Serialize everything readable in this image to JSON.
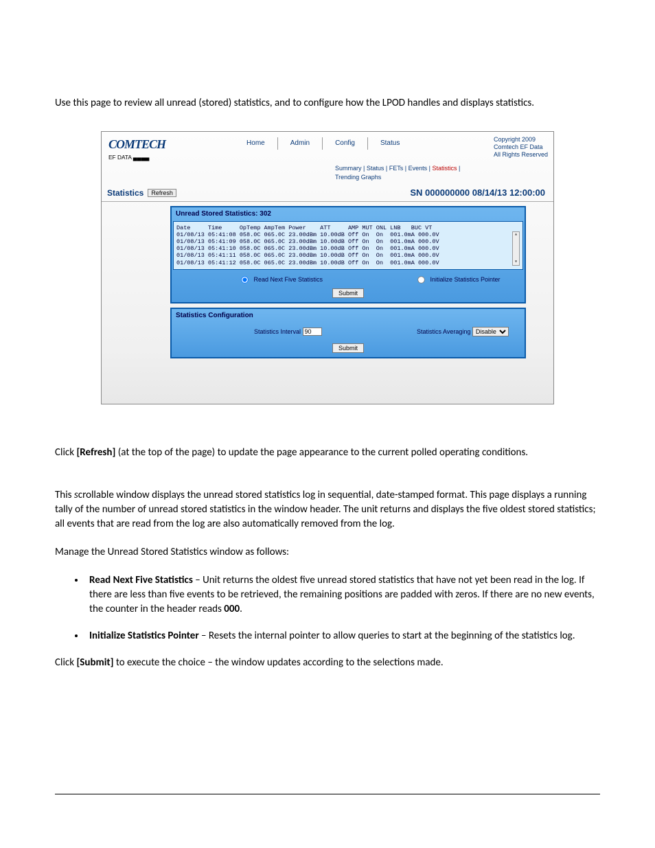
{
  "intro": "Use this page to review all unread (stored) statistics, and to configure how the LPOD handles and displays statistics.",
  "screenshot": {
    "logo": "COMTECH",
    "logo_sub": "EF DATA ▄▄▄▄",
    "nav": {
      "home": "Home",
      "admin": "Admin",
      "config": "Config",
      "status": "Status"
    },
    "copyright": {
      "l1": "Copyright 2009",
      "l2": "Comtech EF Data",
      "l3": "All Rights Reserved"
    },
    "subnav": {
      "summary": "Summary",
      "status": "Status",
      "fets": "FETs",
      "events": "Events",
      "statistics": "Statistics",
      "trending": "Trending Graphs"
    },
    "stats_label": "Statistics",
    "refresh": "Refresh",
    "sn": "SN 000000000 08/14/13 12:00:00",
    "panel1_title": "Unread Stored Statistics: 302",
    "log_header": "Date     Time     OpTemp AmpTem Power    ATT     AMP MUT ONL LNB   BUC VT",
    "log_rows": [
      "01/08/13 05:41:08 058.0C 065.0C 23.00dBm 10.00dB Off On  On  001.0mA 000.0V",
      "01/08/13 05:41:09 058.0C 065.0C 23.00dBm 10.00dB Off On  On  001.0mA 000.0V",
      "01/08/13 05:41:10 058.0C 065.0C 23.00dBm 10.00dB Off On  On  001.0mA 000.0V",
      "01/08/13 05:41:11 058.0C 065.0C 23.00dBm 10.00dB Off On  On  001.0mA 000.0V",
      "01/08/13 05:41:12 058.0C 065.0C 23.00dBm 10.00dB Off On  On  001.0mA 000.0V"
    ],
    "radio_read": "Read Next Five Statistics",
    "radio_init": "Initialize Statistics Pointer",
    "submit": "Submit",
    "panel2_title": "Statistics Configuration",
    "interval_label": "Statistics Interval",
    "interval_value": "90",
    "avg_label": "Statistics Averaging",
    "avg_value": "Disable"
  },
  "para_refresh_a": "Click ",
  "para_refresh_b": "[Refresh]",
  "para_refresh_c": " (at the top of the page) to update the page appearance to the current polled operating conditions.",
  "para_scroll_a": "This ",
  "para_scroll_b": "s",
  "para_scroll_c": "crollable window displays the unread stored statistics log in sequential, date-stamped format. This page displays a running tally of the number of unread stored statistics in the window header. The unit returns and displays the five oldest stored statistics; all events that are read from the log are also automatically removed from the log.",
  "para_manage": "Manage the Unread Stored Statistics window as follows:",
  "bullet1_bold": "Read Next Five Statistics",
  "bullet1_rest": " – Unit returns the oldest five unread stored statistics that have not yet been read in the log. If there are less than five events to be retrieved, the remaining positions are padded with zeros. If there are no new events, the counter in the header reads ",
  "bullet1_000": "000",
  "bullet1_end": ".",
  "bullet2_bold": "Initialize Statistics Pointer",
  "bullet2_rest": " – Resets the internal pointer to allow queries to start at the beginning of the statistics log.",
  "para_submit_a": "Click ",
  "para_submit_b": "[Submit]",
  "para_submit_c": " to execute the choice – the window updates according to the selections made."
}
